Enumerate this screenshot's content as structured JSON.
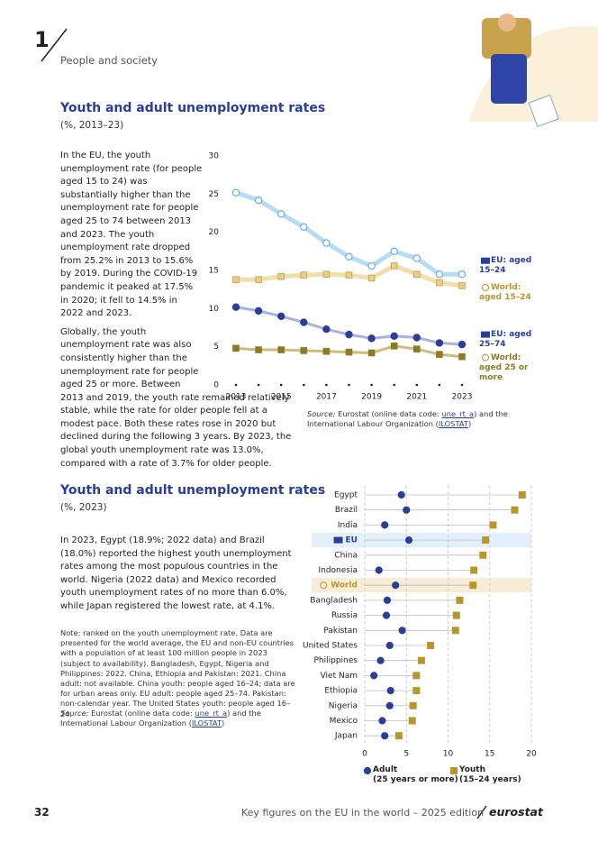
{
  "header": {
    "chapter": "1",
    "section": "People and society"
  },
  "section1": {
    "title": "Youth and adult unemployment rates",
    "subtitle": "(%, 2013–23)",
    "paragraphs": [
      "In the EU, the youth unemployment rate (for people aged 15 to 24) was substantially higher than the unemployment rate for people aged 25 to 74 between 2013 and 2023. The youth unemployment rate dropped from 25.2% in 2013 to 15.6% by 2019. During the COVID-19 pandemic it peaked at 17.5% in 2020; it fell to 14.5% in 2022 and 2023.",
      "Globally, the youth unemployment rate was also consistently higher than the unemployment rate for people aged 25 or more. Between 2013 and 2019, the youth rate remained relatively stable, while the rate for older people fell at a modest pace. Both these rates rose in 2020 but declined during the following 3 years. By 2023, the global youth unemployment rate was 13.0%, compared with a rate of 3.7% for older people."
    ],
    "source": [
      "Source:",
      " Eurostat (online data code: ",
      "une_rt_a",
      ") and the International Labour Organization (",
      "ILOSTAT",
      ")"
    ]
  },
  "chart_data": [
    {
      "type": "line",
      "x": [
        2013,
        2014,
        2015,
        2016,
        2017,
        2018,
        2019,
        2020,
        2021,
        2022,
        2023
      ],
      "xlim": [
        2013,
        2023
      ],
      "xticks": [
        2013,
        2015,
        2017,
        2019,
        2021,
        2023
      ],
      "ylim": [
        0,
        30
      ],
      "yticks": [
        0,
        5,
        10,
        15,
        20,
        25,
        30
      ],
      "grid": false,
      "series": [
        {
          "name": "EU: aged 15–24",
          "icon": "eu",
          "marker": "circle",
          "color": "#ffffff",
          "stroke": "#6aaee0",
          "line_color": "#b5dcf5",
          "label_color": "#2a3e97",
          "values": [
            25.2,
            24.2,
            22.4,
            20.7,
            18.6,
            16.8,
            15.6,
            17.5,
            16.6,
            14.5,
            14.5
          ]
        },
        {
          "name": "World: aged 15–24",
          "icon": "globe",
          "marker": "square",
          "color": "#e7d08c",
          "stroke": "#c9a94f",
          "line_color": "#f0dfae",
          "label_color": "#b8962e",
          "values": [
            13.8,
            13.8,
            14.2,
            14.4,
            14.5,
            14.4,
            14.0,
            15.6,
            14.5,
            13.4,
            13.0
          ]
        },
        {
          "name": "EU: aged 25–74",
          "icon": "eu",
          "marker": "circle",
          "color": "#2a3e97",
          "stroke": "#2a3e97",
          "line_color": "#aab3dc",
          "label_color": "#2a3e97",
          "values": [
            10.2,
            9.7,
            9.0,
            8.2,
            7.3,
            6.6,
            6.1,
            6.4,
            6.2,
            5.5,
            5.3
          ]
        },
        {
          "name": "World: aged 25 or more",
          "icon": "globe",
          "marker": "square",
          "color": "#8d7b24",
          "stroke": "#8d7b24",
          "line_color": "#cbbd80",
          "label_color": "#8d7b24",
          "values": [
            4.8,
            4.6,
            4.6,
            4.5,
            4.4,
            4.3,
            4.2,
            5.1,
            4.7,
            4.0,
            3.7
          ]
        }
      ]
    },
    {
      "type": "dot",
      "categories": [
        "Egypt",
        "Brazil",
        "India",
        "EU",
        "China",
        "Indonesia",
        "World",
        "Bangladesh",
        "Russia",
        "Pakistan",
        "United States",
        "Philippines",
        "Viet Nam",
        "Ethiopia",
        "Nigeria",
        "Mexico",
        "Japan"
      ],
      "highlight": [
        null,
        null,
        null,
        "#e2f0fb",
        null,
        null,
        "#f7edd6",
        null,
        null,
        null,
        null,
        null,
        null,
        null,
        null,
        null,
        null
      ],
      "icons": [
        null,
        null,
        null,
        "eu",
        null,
        null,
        "globe",
        null,
        null,
        null,
        null,
        null,
        null,
        null,
        null,
        null,
        null
      ],
      "xlim": [
        0,
        20
      ],
      "xticks": [
        0,
        5,
        10,
        15,
        20
      ],
      "grid": true,
      "series": [
        {
          "name": "Adult",
          "note": "(25 years or more)",
          "marker": "circle",
          "color": "#2a3e97",
          "values": [
            4.4,
            5.0,
            2.4,
            5.3,
            null,
            1.7,
            3.7,
            2.7,
            2.6,
            4.5,
            3.0,
            1.9,
            1.1,
            3.1,
            3.0,
            2.1,
            2.4
          ]
        },
        {
          "name": "Youth",
          "note": "(15–24 years)",
          "marker": "square",
          "color": "#b8962e",
          "values": [
            18.9,
            18.0,
            15.4,
            14.5,
            14.2,
            13.1,
            13.0,
            11.4,
            11.0,
            10.9,
            7.9,
            6.8,
            6.2,
            6.2,
            5.8,
            5.7,
            4.1
          ]
        }
      ]
    }
  ],
  "section2": {
    "title": "Youth and adult unemployment rates",
    "subtitle": "(%, 2023)",
    "paragraphs": [
      "In 2023, Egypt (18.9%; 2022 data) and Brazil (18.0%) reported the highest youth unemployment rates among the most populous countries in the world. Nigeria (2022 data) and Mexico recorded youth unemployment rates of no more than 6.0%, while Japan registered the lowest rate, at 4.1%."
    ],
    "note": "Note: ranked on the youth unemployment rate. Data are presented for the world average, the EU and non-EU countries with a population of at least 100 million people in 2023 (subject to availability). Bangladesh, Egypt, Nigeria and Philippines: 2022. China, Ethiopia and Pakistan: 2021. China adult: not available. China youth: people aged 16–24; data are for urban areas only. EU adult: people aged 25–74. Pakistan: non-calendar year. The United States youth: people aged 16–24.",
    "source": [
      "Source:",
      " Eurostat (online data code: ",
      "une_rt_a",
      ") and the International Labour Organization (",
      "ILOSTAT",
      ")"
    ]
  },
  "footer": {
    "page": "32",
    "text": "Key figures on the EU in the world – 2025 edition",
    "brand": "eurostat"
  }
}
